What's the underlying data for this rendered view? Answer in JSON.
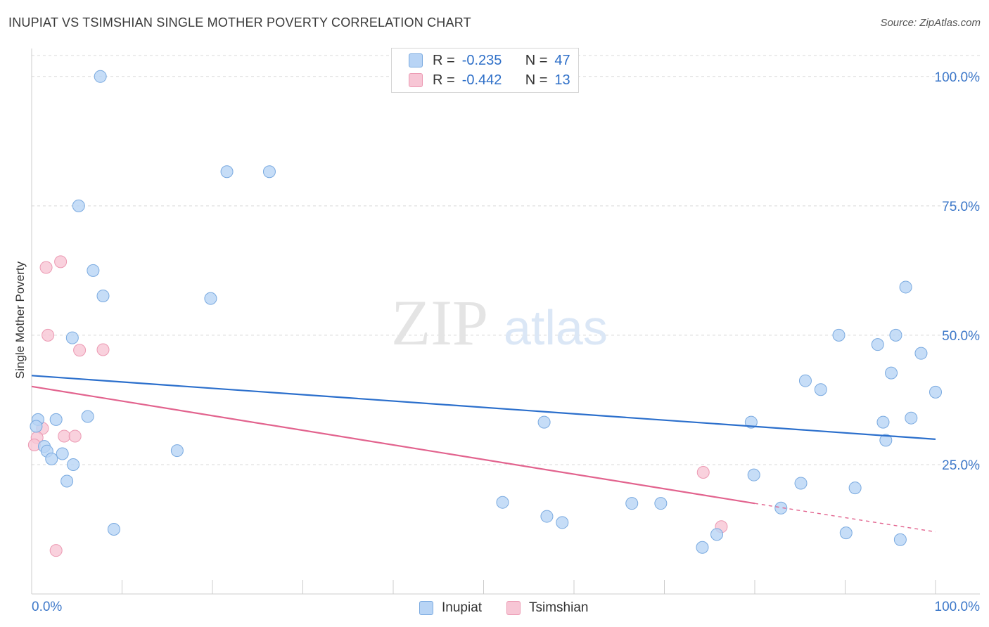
{
  "title": "INUPIAT VS TSIMSHIAN SINGLE MOTHER POVERTY CORRELATION CHART",
  "source": "Source: ZipAtlas.com",
  "legend": {
    "rows": [
      {
        "r_label": "R =",
        "r_value": "-0.235",
        "n_label": "N =",
        "n_value": "47"
      },
      {
        "r_label": "R =",
        "r_value": "-0.442",
        "n_label": "N =",
        "n_value": "13"
      }
    ]
  },
  "bottom_legend": [
    "Inupiat",
    "Tsimshian"
  ],
  "colors": {
    "inupiat_fill": "#b8d4f5",
    "inupiat_stroke": "#7aaae0",
    "inupiat_line": "#2b6fcc",
    "tsimshian_fill": "#f7c6d5",
    "tsimshian_stroke": "#ec9ab3",
    "tsimshian_line": "#e2638e",
    "tick_label": "#3d78c9",
    "grid": "#d9d9d9",
    "axis": "#cccccc"
  },
  "watermark": {
    "zip": "ZIP",
    "atlas": "atlas"
  },
  "chart_data": {
    "type": "scatter",
    "title": "INUPIAT VS TSIMSHIAN SINGLE MOTHER POVERTY CORRELATION CHART",
    "xlabel": "",
    "ylabel": "Single Mother Poverty",
    "xlim": [
      0,
      100
    ],
    "ylim": [
      0,
      105
    ],
    "x_tick_labels": [
      "0.0%",
      "100.0%"
    ],
    "y_ticks": [
      25,
      50,
      75,
      100
    ],
    "y_tick_labels": [
      "25.0%",
      "50.0%",
      "75.0%",
      "100.0%"
    ],
    "series": [
      {
        "name": "Inupiat",
        "R": -0.235,
        "N": 47,
        "trend": {
          "x": [
            0,
            100
          ],
          "y": [
            42.2,
            29.9
          ]
        },
        "points": [
          [
            7.6,
            100
          ],
          [
            21.6,
            81.6
          ],
          [
            26.3,
            81.6
          ],
          [
            5.2,
            75
          ],
          [
            6.8,
            62.5
          ],
          [
            7.9,
            57.6
          ],
          [
            19.8,
            57.1
          ],
          [
            4.5,
            49.5
          ],
          [
            0.7,
            33.7
          ],
          [
            2.7,
            33.7
          ],
          [
            6.2,
            34.3
          ],
          [
            0.5,
            32.4
          ],
          [
            1.4,
            28.5
          ],
          [
            1.7,
            27.6
          ],
          [
            3.4,
            27.1
          ],
          [
            2.2,
            26.1
          ],
          [
            16.1,
            27.7
          ],
          [
            4.6,
            25
          ],
          [
            3.9,
            21.8
          ],
          [
            9.1,
            12.5
          ],
          [
            56.7,
            33.2
          ],
          [
            52.1,
            17.7
          ],
          [
            57,
            15
          ],
          [
            58.7,
            13.8
          ],
          [
            66.4,
            17.5
          ],
          [
            69.6,
            17.5
          ],
          [
            74.2,
            9
          ],
          [
            75.8,
            11.5
          ],
          [
            79.6,
            33.2
          ],
          [
            79.9,
            23
          ],
          [
            82.9,
            16.6
          ],
          [
            85.1,
            21.4
          ],
          [
            85.6,
            41.2
          ],
          [
            87.3,
            39.5
          ],
          [
            89.3,
            50
          ],
          [
            90.1,
            11.8
          ],
          [
            91.1,
            20.5
          ],
          [
            93.6,
            48.2
          ],
          [
            94.2,
            33.2
          ],
          [
            94.5,
            29.7
          ],
          [
            95.1,
            42.7
          ],
          [
            95.6,
            50
          ],
          [
            96.1,
            10.5
          ],
          [
            96.7,
            59.3
          ],
          [
            97.3,
            34
          ],
          [
            98.4,
            46.5
          ],
          [
            100,
            39
          ]
        ]
      },
      {
        "name": "Tsimshian",
        "R": -0.442,
        "N": 13,
        "trend": {
          "x": [
            0,
            80
          ],
          "y": [
            40.1,
            17.5
          ]
        },
        "trend_extension": {
          "x": [
            80,
            100
          ],
          "y": [
            17.5,
            12
          ]
        },
        "points": [
          [
            1.6,
            63.1
          ],
          [
            3.2,
            64.2
          ],
          [
            1.8,
            50
          ],
          [
            5.3,
            47.1
          ],
          [
            7.9,
            47.2
          ],
          [
            1.2,
            32
          ],
          [
            0.6,
            30.2
          ],
          [
            0.3,
            28.8
          ],
          [
            3.6,
            30.5
          ],
          [
            4.8,
            30.5
          ],
          [
            2.7,
            8.4
          ],
          [
            74.3,
            23.5
          ],
          [
            76.3,
            13
          ]
        ]
      }
    ]
  }
}
